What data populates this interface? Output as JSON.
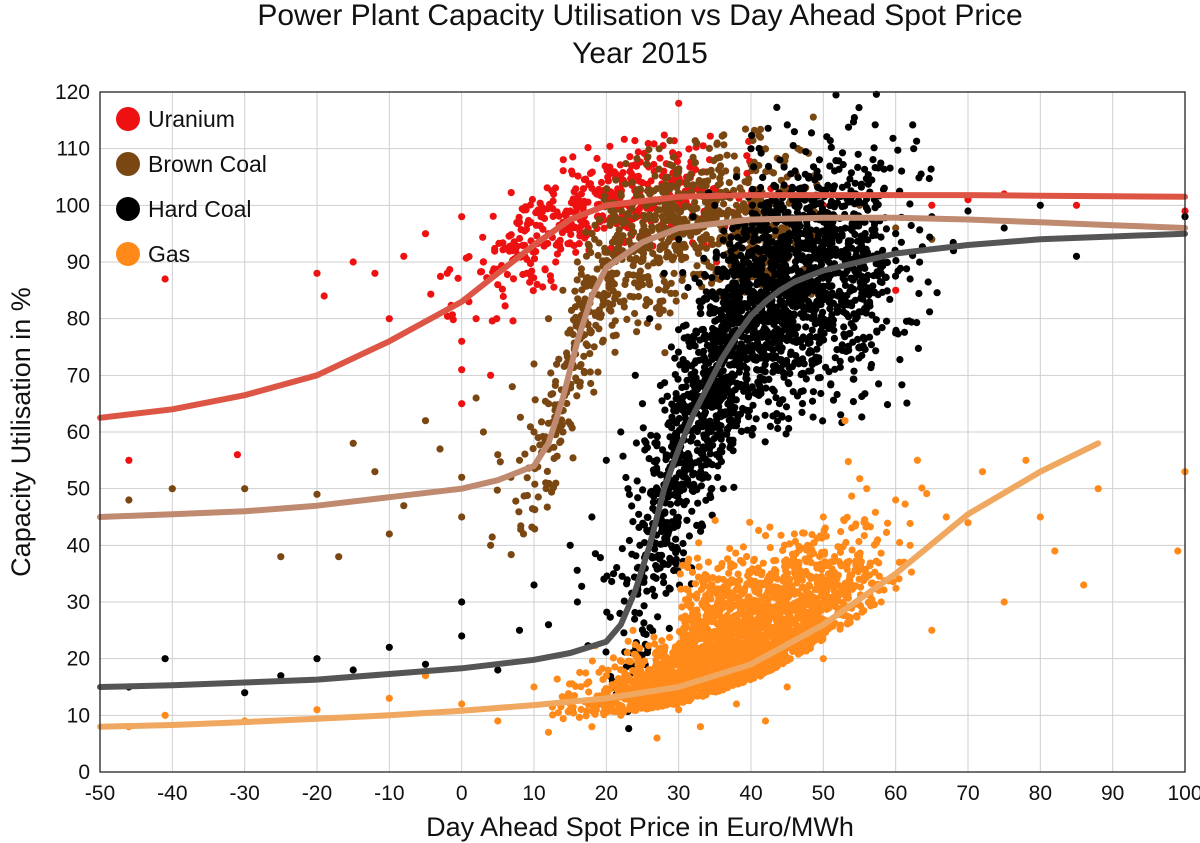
{
  "chart_data": {
    "type": "scatter",
    "title": "Power Plant Capacity Utilisation vs Day Ahead Spot Price",
    "subtitle": "Year 2015",
    "xlabel": "Day Ahead Spot Price in Euro/MWh",
    "ylabel": "Capacity Utilisation in %",
    "xlim": [
      -50,
      100
    ],
    "ylim": [
      0,
      120
    ],
    "xticks": [
      "-50",
      "-40",
      "-30",
      "-20",
      "-10",
      "0",
      "10",
      "20",
      "30",
      "40",
      "50",
      "60",
      "70",
      "80",
      "90",
      "100"
    ],
    "yticks": [
      "0",
      "10",
      "20",
      "30",
      "40",
      "50",
      "60",
      "70",
      "80",
      "90",
      "100",
      "110",
      "120"
    ],
    "grid": true,
    "legend_position": "top-left",
    "series": [
      {
        "name": "Uranium",
        "color": "#ee1111",
        "curve_color": "#dd5544",
        "fit_x": [
          -50,
          -40,
          -30,
          -20,
          -10,
          0,
          5,
          10,
          15,
          20,
          30,
          40,
          50,
          60,
          70,
          80,
          90,
          100
        ],
        "fit_y": [
          62.5,
          64,
          66.5,
          70,
          76,
          83,
          88,
          93,
          97.5,
          100,
          101.5,
          101.8,
          101.8,
          101.8,
          101.8,
          101.7,
          101.6,
          101.5
        ],
        "points": [
          [
            -46,
            55
          ],
          [
            -41,
            87
          ],
          [
            -31,
            56
          ],
          [
            -20,
            88
          ],
          [
            -19,
            84
          ],
          [
            -15,
            90
          ],
          [
            -12,
            88
          ],
          [
            -10,
            80
          ],
          [
            -8,
            91
          ],
          [
            -5,
            95
          ],
          [
            -2,
            88
          ],
          [
            0,
            76
          ],
          [
            0,
            71
          ],
          [
            0,
            65
          ],
          [
            0,
            98
          ],
          [
            1,
            83
          ],
          [
            2,
            80
          ],
          [
            3,
            90
          ],
          [
            4,
            70
          ],
          [
            5,
            86
          ],
          [
            7,
            92
          ],
          [
            8,
            97
          ],
          [
            9,
            88
          ],
          [
            10,
            93
          ],
          [
            11,
            98
          ],
          [
            12,
            95
          ],
          [
            13,
            90
          ],
          [
            14,
            97
          ],
          [
            15,
            99
          ],
          [
            16,
            101
          ],
          [
            18,
            103
          ],
          [
            20,
            102
          ],
          [
            22,
            105
          ],
          [
            25,
            104
          ],
          [
            28,
            105
          ],
          [
            30,
            118
          ],
          [
            30,
            106
          ],
          [
            32,
            103
          ],
          [
            35,
            103
          ],
          [
            40,
            102
          ],
          [
            45,
            103
          ],
          [
            50,
            100
          ],
          [
            55,
            97
          ],
          [
            58,
            90
          ],
          [
            60,
            85
          ],
          [
            65,
            100
          ],
          [
            70,
            101
          ],
          [
            75,
            102
          ],
          [
            85,
            100
          ],
          [
            100,
            99
          ]
        ]
      },
      {
        "name": "Brown Coal",
        "color": "#7a4712",
        "curve_color": "#c08a70",
        "fit_x": [
          -50,
          -40,
          -30,
          -20,
          -10,
          0,
          5,
          10,
          12,
          14,
          16,
          18,
          20,
          25,
          30,
          40,
          50,
          60,
          70,
          80,
          90,
          100
        ],
        "fit_y": [
          45,
          45.5,
          46,
          47,
          48.5,
          50,
          51.5,
          54,
          58,
          66,
          76,
          84,
          89,
          93.5,
          96,
          97.5,
          97.8,
          97.8,
          97.5,
          97,
          96.5,
          96
        ],
        "points": [
          [
            -46,
            48
          ],
          [
            -40,
            50
          ],
          [
            -30,
            50
          ],
          [
            -25,
            38
          ],
          [
            -20,
            49
          ],
          [
            -17,
            38
          ],
          [
            -15,
            58
          ],
          [
            -12,
            53
          ],
          [
            -10,
            42
          ],
          [
            -8,
            47
          ],
          [
            -5,
            62
          ],
          [
            -3,
            57
          ],
          [
            0,
            52
          ],
          [
            0,
            45
          ],
          [
            2,
            66
          ],
          [
            3,
            60
          ],
          [
            4,
            40
          ],
          [
            5,
            56
          ],
          [
            7,
            68
          ],
          [
            8,
            55
          ],
          [
            10,
            72
          ],
          [
            10,
            60
          ],
          [
            12,
            80
          ],
          [
            12,
            65
          ],
          [
            14,
            85
          ],
          [
            15,
            78
          ],
          [
            16,
            90
          ],
          [
            18,
            95
          ],
          [
            20,
            88
          ],
          [
            20,
            100
          ],
          [
            22,
            92
          ],
          [
            24,
            98
          ],
          [
            25,
            86
          ],
          [
            26,
            102
          ],
          [
            28,
            95
          ],
          [
            30,
            99
          ],
          [
            30,
            104
          ],
          [
            32,
            96
          ],
          [
            35,
            101
          ],
          [
            38,
            100
          ],
          [
            40,
            99
          ],
          [
            45,
            105
          ],
          [
            50,
            98
          ],
          [
            55,
            100
          ],
          [
            60,
            96
          ],
          [
            65,
            94
          ]
        ]
      },
      {
        "name": "Hard Coal",
        "color": "#000000",
        "curve_color": "#555555",
        "fit_x": [
          -50,
          -40,
          -30,
          -20,
          -10,
          0,
          10,
          15,
          20,
          22,
          24,
          26,
          28,
          30,
          32,
          34,
          36,
          38,
          40,
          42,
          44,
          46,
          50,
          60,
          70,
          80,
          90,
          100
        ],
        "fit_y": [
          15,
          15.3,
          15.8,
          16.3,
          17.3,
          18.3,
          19.8,
          21,
          23,
          26,
          32,
          40,
          50,
          57,
          63,
          68,
          73,
          77,
          80.5,
          83,
          85,
          86.5,
          88.5,
          91.5,
          93,
          94,
          94.5,
          95
        ],
        "points": [
          [
            -46,
            15
          ],
          [
            -41,
            20
          ],
          [
            -30,
            14
          ],
          [
            -25,
            17
          ],
          [
            -20,
            20
          ],
          [
            -15,
            18
          ],
          [
            -10,
            22
          ],
          [
            -5,
            19
          ],
          [
            0,
            30
          ],
          [
            0,
            24
          ],
          [
            5,
            18
          ],
          [
            8,
            25
          ],
          [
            10,
            33
          ],
          [
            12,
            26
          ],
          [
            15,
            40
          ],
          [
            16,
            30
          ],
          [
            18,
            45
          ],
          [
            20,
            55
          ],
          [
            21,
            35
          ],
          [
            22,
            60
          ],
          [
            23,
            50
          ],
          [
            24,
            70
          ],
          [
            25,
            65
          ],
          [
            26,
            80
          ],
          [
            27,
            58
          ],
          [
            28,
            88
          ],
          [
            29,
            75
          ],
          [
            30,
            94
          ],
          [
            31,
            68
          ],
          [
            32,
            98
          ],
          [
            33,
            82
          ],
          [
            35,
            100
          ],
          [
            36,
            72
          ],
          [
            38,
            105
          ],
          [
            40,
            110
          ],
          [
            41,
            92
          ],
          [
            42,
            86
          ],
          [
            44,
            108
          ],
          [
            45,
            78
          ],
          [
            46,
            113
          ],
          [
            48,
            95
          ],
          [
            50,
            102
          ],
          [
            52,
            84
          ],
          [
            55,
            75
          ],
          [
            58,
            88
          ],
          [
            60,
            95
          ],
          [
            62,
            87
          ],
          [
            65,
            98
          ],
          [
            68,
            92
          ],
          [
            70,
            99
          ],
          [
            75,
            96
          ],
          [
            80,
            100
          ],
          [
            85,
            91
          ],
          [
            100,
            98
          ]
        ]
      },
      {
        "name": "Gas",
        "color": "#ff8a1a",
        "curve_color": "#f0a860",
        "fit_x": [
          -50,
          -40,
          -30,
          -20,
          -10,
          0,
          10,
          20,
          30,
          40,
          50,
          60,
          70,
          80,
          88
        ],
        "fit_y": [
          8,
          8.3,
          8.8,
          9.4,
          10,
          10.8,
          11.8,
          13,
          15,
          19,
          26,
          35,
          45.5,
          53,
          58
        ],
        "points": [
          [
            -46,
            8
          ],
          [
            -41,
            10
          ],
          [
            -30,
            9
          ],
          [
            -20,
            11
          ],
          [
            -10,
            13
          ],
          [
            -5,
            17
          ],
          [
            0,
            12
          ],
          [
            5,
            9
          ],
          [
            10,
            15
          ],
          [
            12,
            7
          ],
          [
            15,
            12
          ],
          [
            18,
            8
          ],
          [
            20,
            17
          ],
          [
            22,
            10
          ],
          [
            25,
            14
          ],
          [
            27,
            6
          ],
          [
            28,
            20
          ],
          [
            30,
            11
          ],
          [
            32,
            25
          ],
          [
            33,
            8
          ],
          [
            35,
            18
          ],
          [
            36,
            30
          ],
          [
            38,
            12
          ],
          [
            40,
            22
          ],
          [
            41,
            36
          ],
          [
            42,
            9
          ],
          [
            44,
            27
          ],
          [
            45,
            15
          ],
          [
            46,
            42
          ],
          [
            48,
            33
          ],
          [
            50,
            20
          ],
          [
            50,
            45
          ],
          [
            52,
            28
          ],
          [
            53,
            62
          ],
          [
            55,
            38
          ],
          [
            56,
            50
          ],
          [
            58,
            30
          ],
          [
            60,
            48
          ],
          [
            62,
            40
          ],
          [
            63,
            55
          ],
          [
            65,
            25
          ],
          [
            67,
            45
          ],
          [
            70,
            44
          ],
          [
            72,
            53
          ],
          [
            75,
            30
          ],
          [
            78,
            55
          ],
          [
            80,
            45
          ],
          [
            82,
            39
          ],
          [
            86,
            33
          ],
          [
            88,
            50
          ],
          [
            99,
            39
          ],
          [
            100,
            53
          ]
        ]
      }
    ]
  }
}
